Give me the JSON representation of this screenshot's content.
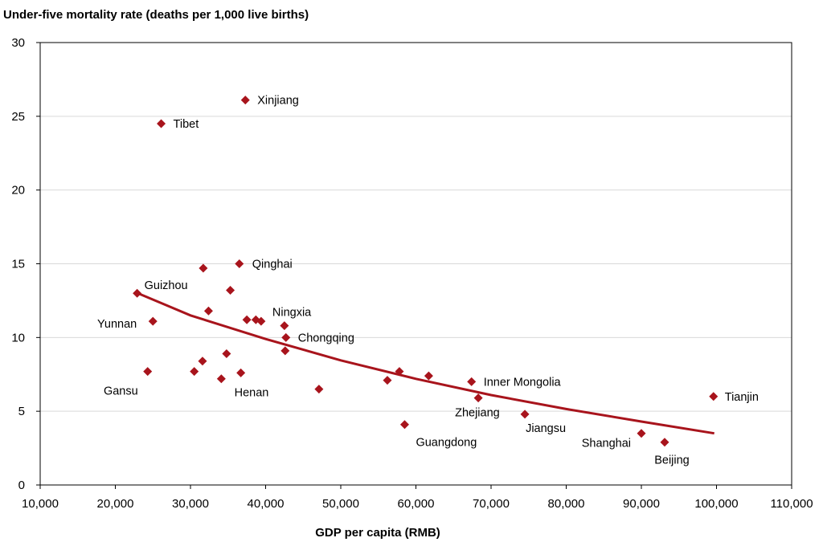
{
  "chart_data": {
    "type": "scatter",
    "title": "Under-five mortality rate (deaths per 1,000 live births)",
    "xlabel": "GDP per capita (RMB)",
    "ylabel": "",
    "xlim": [
      10000,
      110000
    ],
    "ylim": [
      0,
      30
    ],
    "xticks": [
      10000,
      20000,
      30000,
      40000,
      50000,
      60000,
      70000,
      80000,
      90000,
      100000,
      110000
    ],
    "xtick_labels": [
      "10,000",
      "20,000",
      "30,000",
      "40,000",
      "50,000",
      "60,000",
      "70,000",
      "80,000",
      "90,000",
      "100,000",
      "110,000"
    ],
    "yticks": [
      0,
      5,
      10,
      15,
      20,
      25,
      30
    ],
    "ytick_labels": [
      "0",
      "5",
      "10",
      "15",
      "20",
      "25",
      "30"
    ],
    "grid": "horizontal",
    "marker_color": "#a8141c",
    "trend_color": "#a8141c",
    "points": [
      {
        "x": 37300,
        "y": 26.1,
        "label": "Xinjiang"
      },
      {
        "x": 26100,
        "y": 24.5,
        "label": "Tibet"
      },
      {
        "x": 36500,
        "y": 15.0,
        "label": "Qinghai"
      },
      {
        "x": 31700,
        "y": 14.7,
        "label": ""
      },
      {
        "x": 35300,
        "y": 13.2,
        "label": ""
      },
      {
        "x": 22900,
        "y": 13.0,
        "label": "Guizhou"
      },
      {
        "x": 32400,
        "y": 11.8,
        "label": ""
      },
      {
        "x": 37500,
        "y": 11.2,
        "label": ""
      },
      {
        "x": 38700,
        "y": 11.2,
        "label": ""
      },
      {
        "x": 39400,
        "y": 11.1,
        "label": ""
      },
      {
        "x": 25000,
        "y": 11.1,
        "label": "Yunnan"
      },
      {
        "x": 42500,
        "y": 10.8,
        "label": "Ningxia"
      },
      {
        "x": 42700,
        "y": 10.0,
        "label": "Chongqing"
      },
      {
        "x": 42600,
        "y": 9.1,
        "label": ""
      },
      {
        "x": 34800,
        "y": 8.9,
        "label": ""
      },
      {
        "x": 31600,
        "y": 8.4,
        "label": ""
      },
      {
        "x": 24300,
        "y": 7.7,
        "label": "Gansu"
      },
      {
        "x": 30500,
        "y": 7.7,
        "label": ""
      },
      {
        "x": 36700,
        "y": 7.6,
        "label": "Henan"
      },
      {
        "x": 34100,
        "y": 7.2,
        "label": ""
      },
      {
        "x": 47100,
        "y": 6.5,
        "label": ""
      },
      {
        "x": 57800,
        "y": 7.7,
        "label": ""
      },
      {
        "x": 56200,
        "y": 7.1,
        "label": ""
      },
      {
        "x": 61700,
        "y": 7.4,
        "label": ""
      },
      {
        "x": 67400,
        "y": 7.0,
        "label": "Inner Mongolia"
      },
      {
        "x": 68300,
        "y": 5.9,
        "label": "Zhejiang"
      },
      {
        "x": 58500,
        "y": 4.1,
        "label": "Guangdong"
      },
      {
        "x": 74500,
        "y": 4.8,
        "label": "Jiangsu"
      },
      {
        "x": 99600,
        "y": 6.0,
        "label": "Tianjin"
      },
      {
        "x": 90000,
        "y": 3.5,
        "label": "Shanghai"
      },
      {
        "x": 93100,
        "y": 2.9,
        "label": "Beijing"
      }
    ],
    "trendline": {
      "type": "power",
      "x": [
        23000,
        30000,
        40000,
        50000,
        60000,
        70000,
        80000,
        90000,
        99700
      ],
      "y": [
        13.0,
        11.5,
        9.9,
        8.45,
        7.2,
        6.1,
        5.15,
        4.3,
        3.5
      ]
    }
  }
}
